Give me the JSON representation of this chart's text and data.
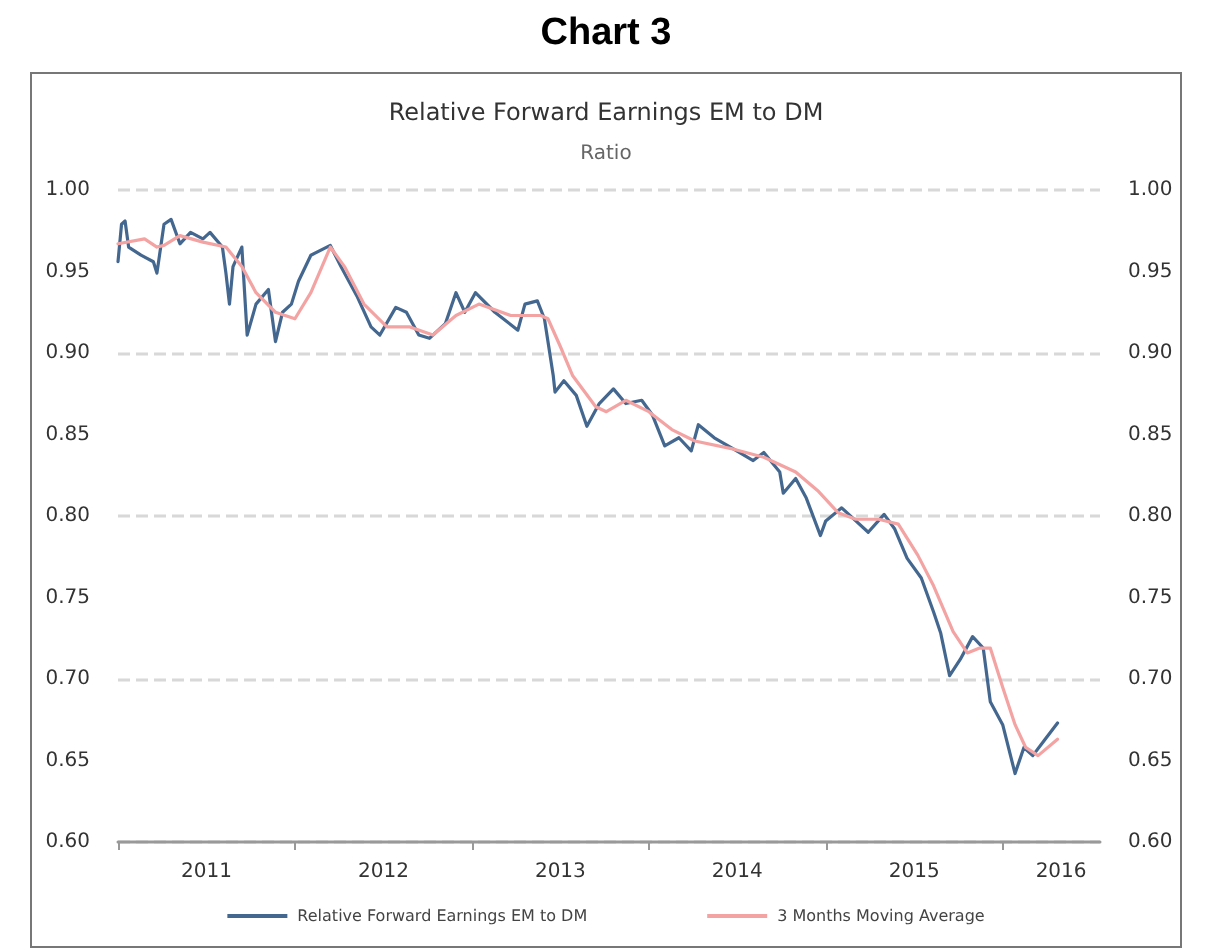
{
  "chart_data": {
    "type": "line",
    "title": "Chart 3",
    "subtitle": "Relative Forward Earnings EM to DM",
    "ylabel": "Ratio",
    "xlim": [
      2011,
      2016.55
    ],
    "xticks": [
      {
        "value": 2011,
        "label": null
      },
      {
        "value": 2011.5,
        "label": "2011"
      },
      {
        "value": 2012,
        "label": null
      },
      {
        "value": 2012.5,
        "label": "2012"
      },
      {
        "value": 2013,
        "label": null
      },
      {
        "value": 2013.5,
        "label": "2013"
      },
      {
        "value": 2014,
        "label": null
      },
      {
        "value": 2014.5,
        "label": "2014"
      },
      {
        "value": 2015,
        "label": null
      },
      {
        "value": 2015.5,
        "label": "2015"
      },
      {
        "value": 2016,
        "label": null
      },
      {
        "value": 2016.33,
        "label": "2016"
      }
    ],
    "ylim": [
      0.6,
      1.0
    ],
    "yticks": [
      {
        "value": 0.6,
        "label": "0.60"
      },
      0.65,
      {
        "value": 0.7,
        "label": "0.70"
      },
      0.75,
      {
        "value": 0.8,
        "label": "0.80"
      },
      0.85,
      {
        "value": 0.9,
        "label": "0.90"
      },
      0.95,
      {
        "value": 1.0,
        "label": "1.00"
      }
    ],
    "y2lim": [
      0.6,
      1.0
    ],
    "y2ticks": [
      {
        "value": 0.6,
        "label": "0.60"
      },
      0.65,
      {
        "value": 0.7,
        "label": "0.70"
      },
      0.75,
      {
        "value": 0.8,
        "label": "0.80"
      },
      0.85,
      {
        "value": 0.9,
        "label": "0.90"
      },
      0.95,
      {
        "value": 1.0,
        "label": "1.00"
      }
    ],
    "grid": "y",
    "legend": "bottom",
    "marker": "none",
    "line_style": "solid",
    "series": [
      {
        "name": "Relative Forward Earnings EM to DM",
        "color": "#44678f",
        "x": [
          2011.0,
          2011.02,
          2011.04,
          2011.06,
          2011.13,
          2011.2,
          2011.22,
          2011.26,
          2011.3,
          2011.35,
          2011.41,
          2011.48,
          2011.52,
          2011.59,
          2011.61,
          2011.63,
          2011.65,
          2011.7,
          2011.73,
          2011.78,
          2011.85,
          2011.89,
          2011.93,
          2011.98,
          2012.02,
          2012.09,
          2012.2,
          2012.26,
          2012.35,
          2012.43,
          2012.48,
          2012.57,
          2012.63,
          2012.7,
          2012.76,
          2012.85,
          2012.91,
          2012.96,
          2013.02,
          2013.13,
          2013.26,
          2013.3,
          2013.37,
          2013.41,
          2013.43,
          2013.46,
          2013.47,
          2013.52,
          2013.59,
          2013.65,
          2013.72,
          2013.8,
          2013.87,
          2013.96,
          2014.02,
          2014.09,
          2014.17,
          2014.24,
          2014.28,
          2014.37,
          2014.48,
          2014.59,
          2014.65,
          2014.74,
          2014.76,
          2014.83,
          2014.89,
          2014.97,
          2015.0,
          2015.09,
          2015.15,
          2015.24,
          2015.33,
          2015.39,
          2015.46,
          2015.54,
          2015.61,
          2015.65,
          2015.7,
          2015.76,
          2015.83,
          2015.89,
          2015.93,
          2016.0,
          2016.07,
          2016.12,
          2016.17,
          2016.24,
          2016.31
        ],
        "values": [
          0.956,
          0.979,
          0.981,
          0.965,
          0.96,
          0.956,
          0.949,
          0.979,
          0.982,
          0.967,
          0.974,
          0.97,
          0.974,
          0.965,
          0.949,
          0.93,
          0.953,
          0.965,
          0.911,
          0.93,
          0.939,
          0.907,
          0.925,
          0.93,
          0.944,
          0.96,
          0.966,
          0.953,
          0.935,
          0.916,
          0.911,
          0.928,
          0.925,
          0.911,
          0.909,
          0.918,
          0.937,
          0.925,
          0.937,
          0.925,
          0.914,
          0.93,
          0.932,
          0.921,
          0.907,
          0.886,
          0.876,
          0.883,
          0.874,
          0.855,
          0.869,
          0.878,
          0.869,
          0.871,
          0.862,
          0.843,
          0.848,
          0.84,
          0.856,
          0.848,
          0.841,
          0.834,
          0.839,
          0.827,
          0.814,
          0.823,
          0.811,
          0.788,
          0.797,
          0.805,
          0.799,
          0.79,
          0.801,
          0.792,
          0.774,
          0.762,
          0.741,
          0.728,
          0.702,
          0.712,
          0.726,
          0.719,
          0.686,
          0.672,
          0.642,
          0.658,
          0.653,
          0.663,
          0.673
        ]
      },
      {
        "name": "3 Months Moving Average",
        "color": "#f4a3a3",
        "x": [
          2011.0,
          2011.15,
          2011.22,
          2011.26,
          2011.35,
          2011.48,
          2011.61,
          2011.7,
          2011.78,
          2011.89,
          2012.0,
          2012.09,
          2012.2,
          2012.28,
          2012.39,
          2012.52,
          2012.65,
          2012.78,
          2012.91,
          2013.04,
          2013.22,
          2013.39,
          2013.43,
          2013.5,
          2013.57,
          2013.7,
          2013.76,
          2013.87,
          2014.0,
          2014.13,
          2014.26,
          2014.48,
          2014.65,
          2014.83,
          2014.96,
          2015.07,
          2015.17,
          2015.3,
          2015.41,
          2015.52,
          2015.61,
          2015.72,
          2015.8,
          2015.87,
          2015.93,
          2016.0,
          2016.07,
          2016.13,
          2016.2,
          2016.31
        ],
        "values": [
          0.967,
          0.97,
          0.965,
          0.966,
          0.972,
          0.968,
          0.965,
          0.953,
          0.937,
          0.925,
          0.921,
          0.937,
          0.965,
          0.953,
          0.93,
          0.916,
          0.916,
          0.911,
          0.923,
          0.93,
          0.923,
          0.923,
          0.921,
          0.904,
          0.886,
          0.867,
          0.864,
          0.871,
          0.864,
          0.853,
          0.846,
          0.841,
          0.836,
          0.827,
          0.815,
          0.802,
          0.798,
          0.798,
          0.795,
          0.776,
          0.757,
          0.729,
          0.716,
          0.719,
          0.719,
          0.695,
          0.672,
          0.658,
          0.653,
          0.663
        ]
      }
    ]
  }
}
